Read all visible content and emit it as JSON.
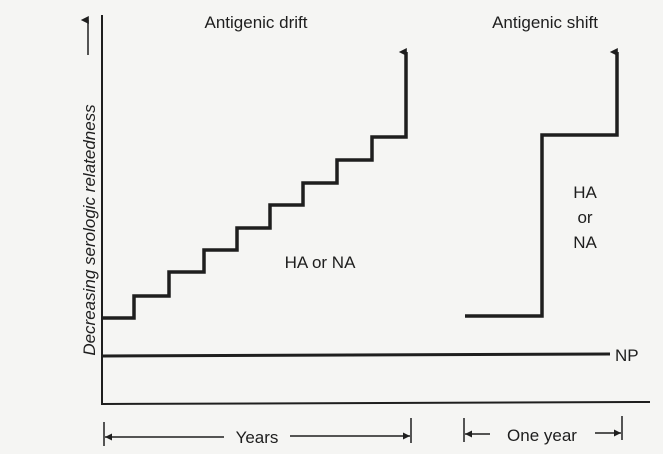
{
  "labels": {
    "drift_title": "Antigenic drift",
    "shift_title": "Antigenic shift",
    "y_axis": "Decreasing serologic relatedness",
    "drift_curve": "HA or NA",
    "shift_curve_1": "HA",
    "shift_curve_2": "or",
    "shift_curve_3": "NA",
    "np_line": "NP",
    "years": "Years",
    "one_year": "One year"
  },
  "colors": {
    "ink": "#1e1e1e",
    "paper": "#f5f5f3"
  }
}
